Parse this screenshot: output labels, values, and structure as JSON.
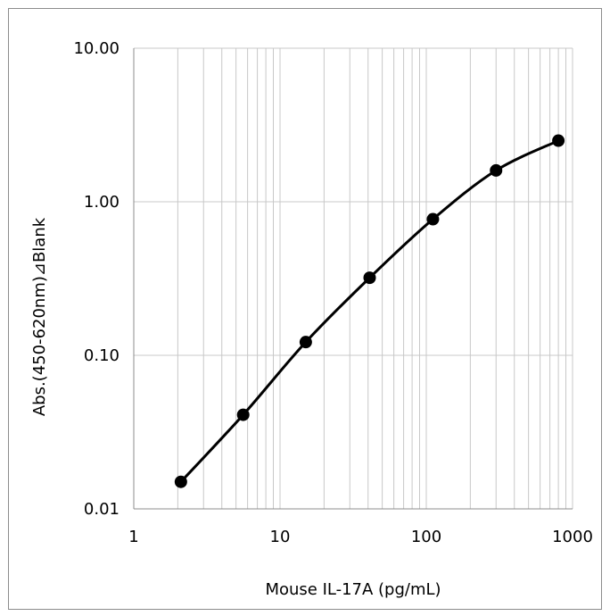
{
  "chart_data": {
    "type": "line",
    "title": "",
    "xlabel": "Mouse IL-17A (pg/mL)",
    "ylabel": "Abs.(450-620nm)⊿Blank",
    "x_scale": "log",
    "y_scale": "log",
    "xlim": [
      1,
      1000
    ],
    "ylim": [
      0.01,
      10
    ],
    "x_tick_labels": [
      "1",
      "10",
      "100",
      "1000"
    ],
    "y_tick_labels": [
      "10.00",
      "1.00",
      "0.10",
      "0.01"
    ],
    "grid": "major and minor",
    "legend": "none",
    "series": [
      {
        "x": [
          2.1,
          5.6,
          15,
          41,
          111,
          300,
          800
        ],
        "y": [
          0.015,
          0.041,
          0.122,
          0.32,
          0.77,
          1.6,
          2.5
        ]
      }
    ],
    "colors": {
      "line": "#000000",
      "marker": "#000000",
      "grid": "#c8c8c8",
      "frame": "#8c8c8c",
      "axis": "#8c8c8c"
    }
  }
}
